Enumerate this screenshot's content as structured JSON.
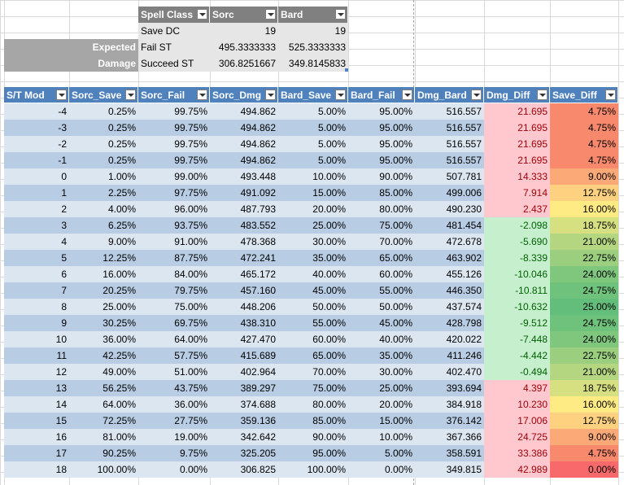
{
  "summary": {
    "headers": [
      "Spell Class",
      "Sorc",
      "Bard"
    ],
    "rows": [
      {
        "label": "",
        "name": "Save DC",
        "sorc": "19",
        "bard": "19"
      },
      {
        "label": "Expected",
        "name": "Fail ST",
        "sorc": "495.3333333",
        "bard": "525.3333333"
      },
      {
        "label": "Damage",
        "name": "Succeed ST",
        "sorc": "306.8251667",
        "bard": "349.8145833"
      }
    ]
  },
  "table": {
    "headers": [
      "S/T Mod",
      "Sorc_Save",
      "Sorc_Fail",
      "Sorc_Dmg",
      "Bard_Save",
      "Bard_Fail",
      "Dmg_Bard",
      "Dmg_Diff",
      "Save_Diff"
    ],
    "rows": [
      [
        "-4",
        "0.25%",
        "99.75%",
        "494.862",
        "5.00%",
        "95.00%",
        "516.557",
        "21.695",
        "4.75%"
      ],
      [
        "-3",
        "0.25%",
        "99.75%",
        "494.862",
        "5.00%",
        "95.00%",
        "516.557",
        "21.695",
        "4.75%"
      ],
      [
        "-2",
        "0.25%",
        "99.75%",
        "494.862",
        "5.00%",
        "95.00%",
        "516.557",
        "21.695",
        "4.75%"
      ],
      [
        "-1",
        "0.25%",
        "99.75%",
        "494.862",
        "5.00%",
        "95.00%",
        "516.557",
        "21.695",
        "4.75%"
      ],
      [
        "0",
        "1.00%",
        "99.00%",
        "493.448",
        "10.00%",
        "90.00%",
        "507.781",
        "14.333",
        "9.00%"
      ],
      [
        "1",
        "2.25%",
        "97.75%",
        "491.092",
        "15.00%",
        "85.00%",
        "499.006",
        "7.914",
        "12.75%"
      ],
      [
        "2",
        "4.00%",
        "96.00%",
        "487.793",
        "20.00%",
        "80.00%",
        "490.230",
        "2.437",
        "16.00%"
      ],
      [
        "3",
        "6.25%",
        "93.75%",
        "483.552",
        "25.00%",
        "75.00%",
        "481.454",
        "-2.098",
        "18.75%"
      ],
      [
        "4",
        "9.00%",
        "91.00%",
        "478.368",
        "30.00%",
        "70.00%",
        "472.678",
        "-5.690",
        "21.00%"
      ],
      [
        "5",
        "12.25%",
        "87.75%",
        "472.241",
        "35.00%",
        "65.00%",
        "463.902",
        "-8.339",
        "22.75%"
      ],
      [
        "6",
        "16.00%",
        "84.00%",
        "465.172",
        "40.00%",
        "60.00%",
        "455.126",
        "-10.046",
        "24.00%"
      ],
      [
        "7",
        "20.25%",
        "79.75%",
        "457.160",
        "45.00%",
        "55.00%",
        "446.350",
        "-10.811",
        "24.75%"
      ],
      [
        "8",
        "25.00%",
        "75.00%",
        "448.206",
        "50.00%",
        "50.00%",
        "437.574",
        "-10.632",
        "25.00%"
      ],
      [
        "9",
        "30.25%",
        "69.75%",
        "438.310",
        "55.00%",
        "45.00%",
        "428.798",
        "-9.512",
        "24.75%"
      ],
      [
        "10",
        "36.00%",
        "64.00%",
        "427.470",
        "60.00%",
        "40.00%",
        "420.022",
        "-7.448",
        "24.00%"
      ],
      [
        "11",
        "42.25%",
        "57.75%",
        "415.689",
        "65.00%",
        "35.00%",
        "411.246",
        "-4.442",
        "22.75%"
      ],
      [
        "12",
        "49.00%",
        "51.00%",
        "402.964",
        "70.00%",
        "30.00%",
        "402.470",
        "-0.494",
        "21.00%"
      ],
      [
        "13",
        "56.25%",
        "43.75%",
        "389.297",
        "75.00%",
        "25.00%",
        "393.694",
        "4.397",
        "18.75%"
      ],
      [
        "14",
        "64.00%",
        "36.00%",
        "374.688",
        "80.00%",
        "20.00%",
        "384.918",
        "10.230",
        "16.00%"
      ],
      [
        "15",
        "72.25%",
        "27.75%",
        "359.136",
        "85.00%",
        "15.00%",
        "376.142",
        "17.006",
        "12.75%"
      ],
      [
        "16",
        "81.00%",
        "19.00%",
        "342.642",
        "90.00%",
        "10.00%",
        "367.366",
        "24.725",
        "9.00%"
      ],
      [
        "17",
        "90.25%",
        "9.75%",
        "325.205",
        "95.00%",
        "5.00%",
        "358.591",
        "33.386",
        "4.75%"
      ],
      [
        "18",
        "100.00%",
        "0.00%",
        "306.825",
        "100.00%",
        "0.00%",
        "349.815",
        "42.989",
        "0.00%"
      ]
    ],
    "dmg_diff_colors": [
      "#ffc7ce",
      "#ffc7ce",
      "#ffc7ce",
      "#ffc7ce",
      "#ffc7ce",
      "#ffc7ce",
      "#ffc7ce",
      "#c6efce",
      "#c6efce",
      "#c6efce",
      "#c6efce",
      "#c6efce",
      "#c6efce",
      "#c6efce",
      "#c6efce",
      "#c6efce",
      "#c6efce",
      "#ffc7ce",
      "#ffc7ce",
      "#ffc7ce",
      "#ffc7ce",
      "#ffc7ce",
      "#ffc7ce"
    ],
    "save_diff_colors": [
      "#f8896c",
      "#f8896c",
      "#f8896c",
      "#f8896c",
      "#fbaa77",
      "#fdd17f",
      "#ffeb84",
      "#d7e081",
      "#b5d680",
      "#9bcf7f",
      "#7fc77d",
      "#6fc27c",
      "#63be7b",
      "#6fc27c",
      "#7fc77d",
      "#9bcf7f",
      "#b5d680",
      "#d7e081",
      "#ffeb84",
      "#fdd17f",
      "#fbaa77",
      "#f8896c",
      "#f8696b"
    ]
  }
}
